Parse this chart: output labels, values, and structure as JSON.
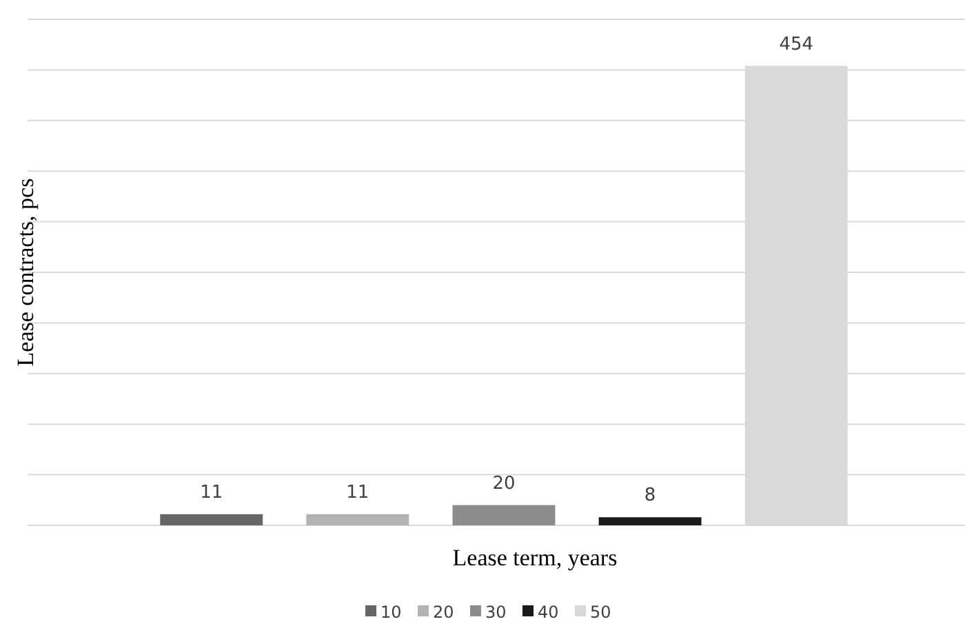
{
  "chart_data": {
    "type": "bar",
    "xlabel": "Lease term, years",
    "ylabel": "Lease contracts, pcs",
    "categories": [
      null,
      null,
      null,
      null,
      null
    ],
    "stacked": true,
    "series": [
      {
        "name": "10",
        "color": "#666666",
        "values": [
          11,
          null,
          null,
          null,
          null
        ]
      },
      {
        "name": "20",
        "color": "#b3b3b3",
        "values": [
          null,
          11,
          null,
          null,
          null
        ]
      },
      {
        "name": "30",
        "color": "#8c8c8c",
        "values": [
          null,
          null,
          20,
          null,
          null
        ]
      },
      {
        "name": "40",
        "color": "#1a1a1a",
        "values": [
          null,
          null,
          null,
          8,
          null
        ]
      },
      {
        "name": "50",
        "color": "#d9d9d9",
        "values": [
          null,
          null,
          null,
          null,
          454
        ]
      }
    ],
    "ylim": [
      0,
      500
    ],
    "yticks": [
      {
        "value": 0,
        "label": null
      },
      {
        "value": 50,
        "label": null
      },
      {
        "value": 100,
        "label": null
      },
      {
        "value": 150,
        "label": null
      },
      {
        "value": 200,
        "label": null
      },
      {
        "value": 250,
        "label": null
      },
      {
        "value": 300,
        "label": null
      },
      {
        "value": 350,
        "label": null
      },
      {
        "value": 400,
        "label": null
      },
      {
        "value": 450,
        "label": null
      },
      {
        "value": 500,
        "label": null
      }
    ],
    "grid": "y",
    "data_labels": true,
    "legend": "bottom"
  }
}
